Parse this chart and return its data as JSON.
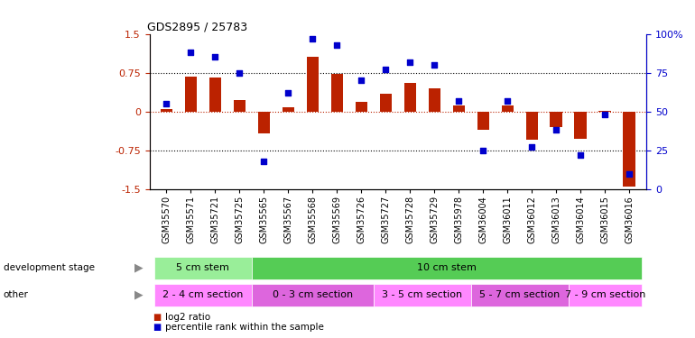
{
  "title": "GDS2895 / 25783",
  "samples": [
    "GSM35570",
    "GSM35571",
    "GSM35721",
    "GSM35725",
    "GSM35565",
    "GSM35567",
    "GSM35568",
    "GSM35569",
    "GSM35726",
    "GSM35727",
    "GSM35728",
    "GSM35729",
    "GSM35978",
    "GSM36004",
    "GSM36011",
    "GSM36012",
    "GSM36013",
    "GSM36014",
    "GSM36015",
    "GSM36016"
  ],
  "log2_ratio": [
    0.05,
    0.68,
    0.65,
    0.22,
    -0.42,
    0.08,
    1.05,
    0.72,
    0.18,
    0.35,
    0.55,
    0.45,
    0.12,
    -0.35,
    0.12,
    -0.55,
    -0.3,
    -0.52,
    0.02,
    -1.45
  ],
  "percentile": [
    55,
    88,
    85,
    75,
    18,
    62,
    97,
    93,
    70,
    77,
    82,
    80,
    57,
    25,
    57,
    27,
    38,
    22,
    48,
    10
  ],
  "ylim": [
    -1.5,
    1.5
  ],
  "y2lim": [
    0,
    100
  ],
  "yticks_left": [
    -1.5,
    -0.75,
    0.0,
    0.75,
    1.5
  ],
  "yticks_left_labels": [
    "-1.5",
    "-0.75",
    "0",
    "0.75",
    "1.5"
  ],
  "yticks_right": [
    0,
    25,
    50,
    75,
    100
  ],
  "yticks_right_labels": [
    "0",
    "25",
    "50",
    "75",
    "100%"
  ],
  "hlines_dotted": [
    0.75,
    -0.75
  ],
  "bar_color": "#bb2200",
  "scatter_color": "#0000cc",
  "dev_stage_groups": [
    {
      "label": "5 cm stem",
      "start": 0,
      "end": 3,
      "color": "#99ee99"
    },
    {
      "label": "10 cm stem",
      "start": 4,
      "end": 19,
      "color": "#55cc55"
    }
  ],
  "other_groups": [
    {
      "label": "2 - 4 cm section",
      "start": 0,
      "end": 3,
      "color": "#ff88ff"
    },
    {
      "label": "0 - 3 cm section",
      "start": 4,
      "end": 8,
      "color": "#dd66dd"
    },
    {
      "label": "3 - 5 cm section",
      "start": 9,
      "end": 12,
      "color": "#ff88ff"
    },
    {
      "label": "5 - 7 cm section",
      "start": 13,
      "end": 16,
      "color": "#dd66dd"
    },
    {
      "label": "7 - 9 cm section",
      "start": 17,
      "end": 19,
      "color": "#ff88ff"
    }
  ],
  "legend_items": [
    {
      "label": "log2 ratio",
      "color": "#bb2200"
    },
    {
      "label": "percentile rank within the sample",
      "color": "#0000cc"
    }
  ]
}
